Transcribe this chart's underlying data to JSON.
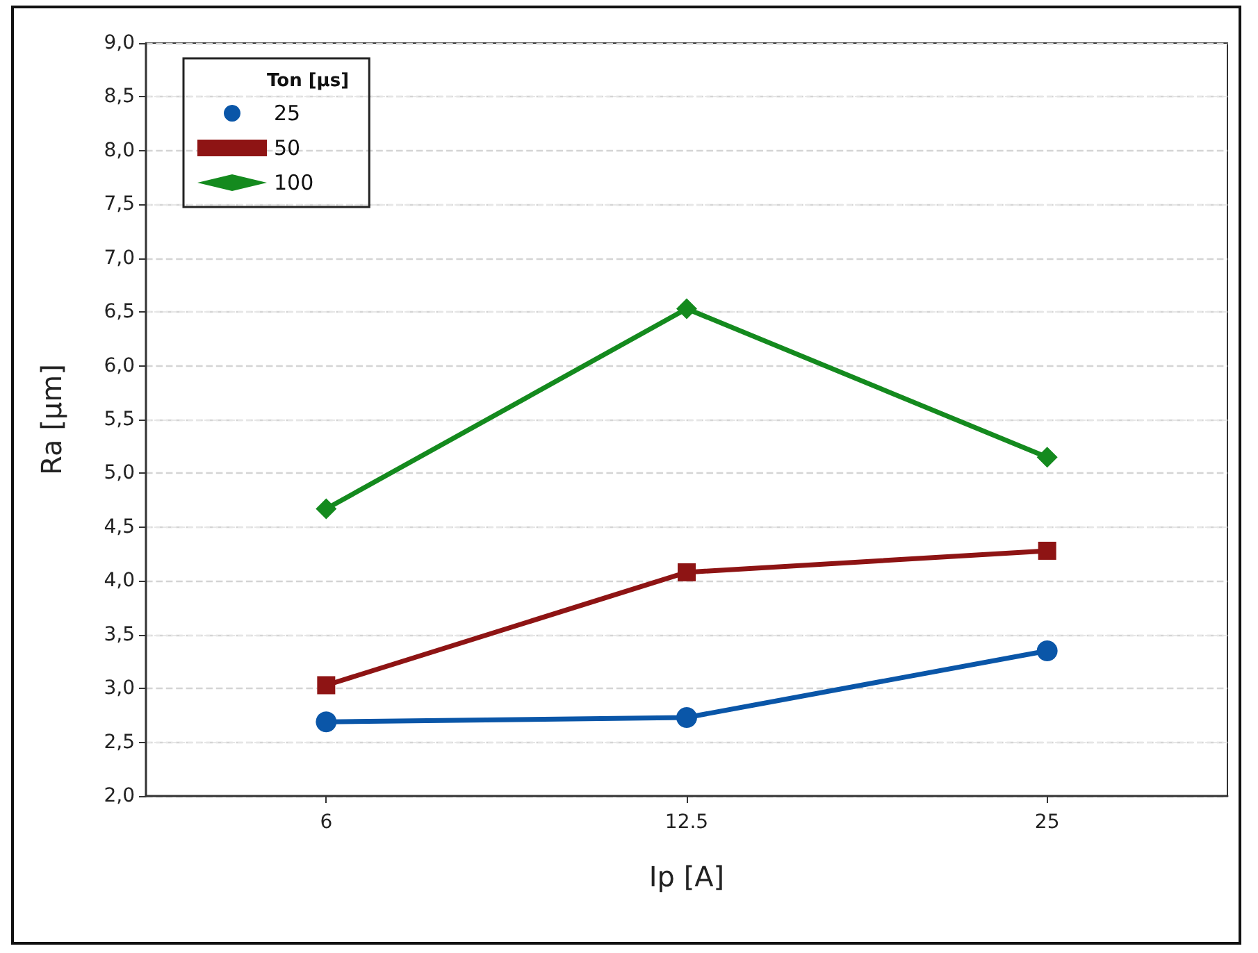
{
  "chart_data": {
    "type": "line",
    "xlabel": "Ip [A]",
    "ylabel": "Ra [µm]",
    "legend_title": "Ton [µs]",
    "categories": [
      "6",
      "12.5",
      "25"
    ],
    "series": [
      {
        "name": "25",
        "color": "#0a56a8",
        "marker": "circle",
        "values": [
          2.69,
          2.73,
          3.35
        ]
      },
      {
        "name": "50",
        "color": "#8e1414",
        "marker": "square",
        "values": [
          3.03,
          4.08,
          4.28
        ]
      },
      {
        "name": "100",
        "color": "#148a1e",
        "marker": "diamond",
        "values": [
          4.67,
          6.53,
          5.15
        ]
      }
    ],
    "ylim": [
      2.0,
      9.0
    ],
    "yticks": [
      {
        "value": 2.0,
        "label": "2,0"
      },
      {
        "value": 2.5,
        "label": "2,5"
      },
      {
        "value": 3.0,
        "label": "3,0"
      },
      {
        "value": 3.5,
        "label": "3,5"
      },
      {
        "value": 4.0,
        "label": "4,0"
      },
      {
        "value": 4.5,
        "label": "4,5"
      },
      {
        "value": 5.0,
        "label": "5,0"
      },
      {
        "value": 5.5,
        "label": "5,5"
      },
      {
        "value": 6.0,
        "label": "6,0"
      },
      {
        "value": 6.5,
        "label": "6,5"
      },
      {
        "value": 7.0,
        "label": "7,0"
      },
      {
        "value": 7.5,
        "label": "7,5"
      },
      {
        "value": 8.0,
        "label": "8,0"
      },
      {
        "value": 8.5,
        "label": "8,5"
      },
      {
        "value": 9.0,
        "label": "9,0"
      }
    ],
    "grid": "y",
    "legend": "top left",
    "line_style": "solid"
  }
}
